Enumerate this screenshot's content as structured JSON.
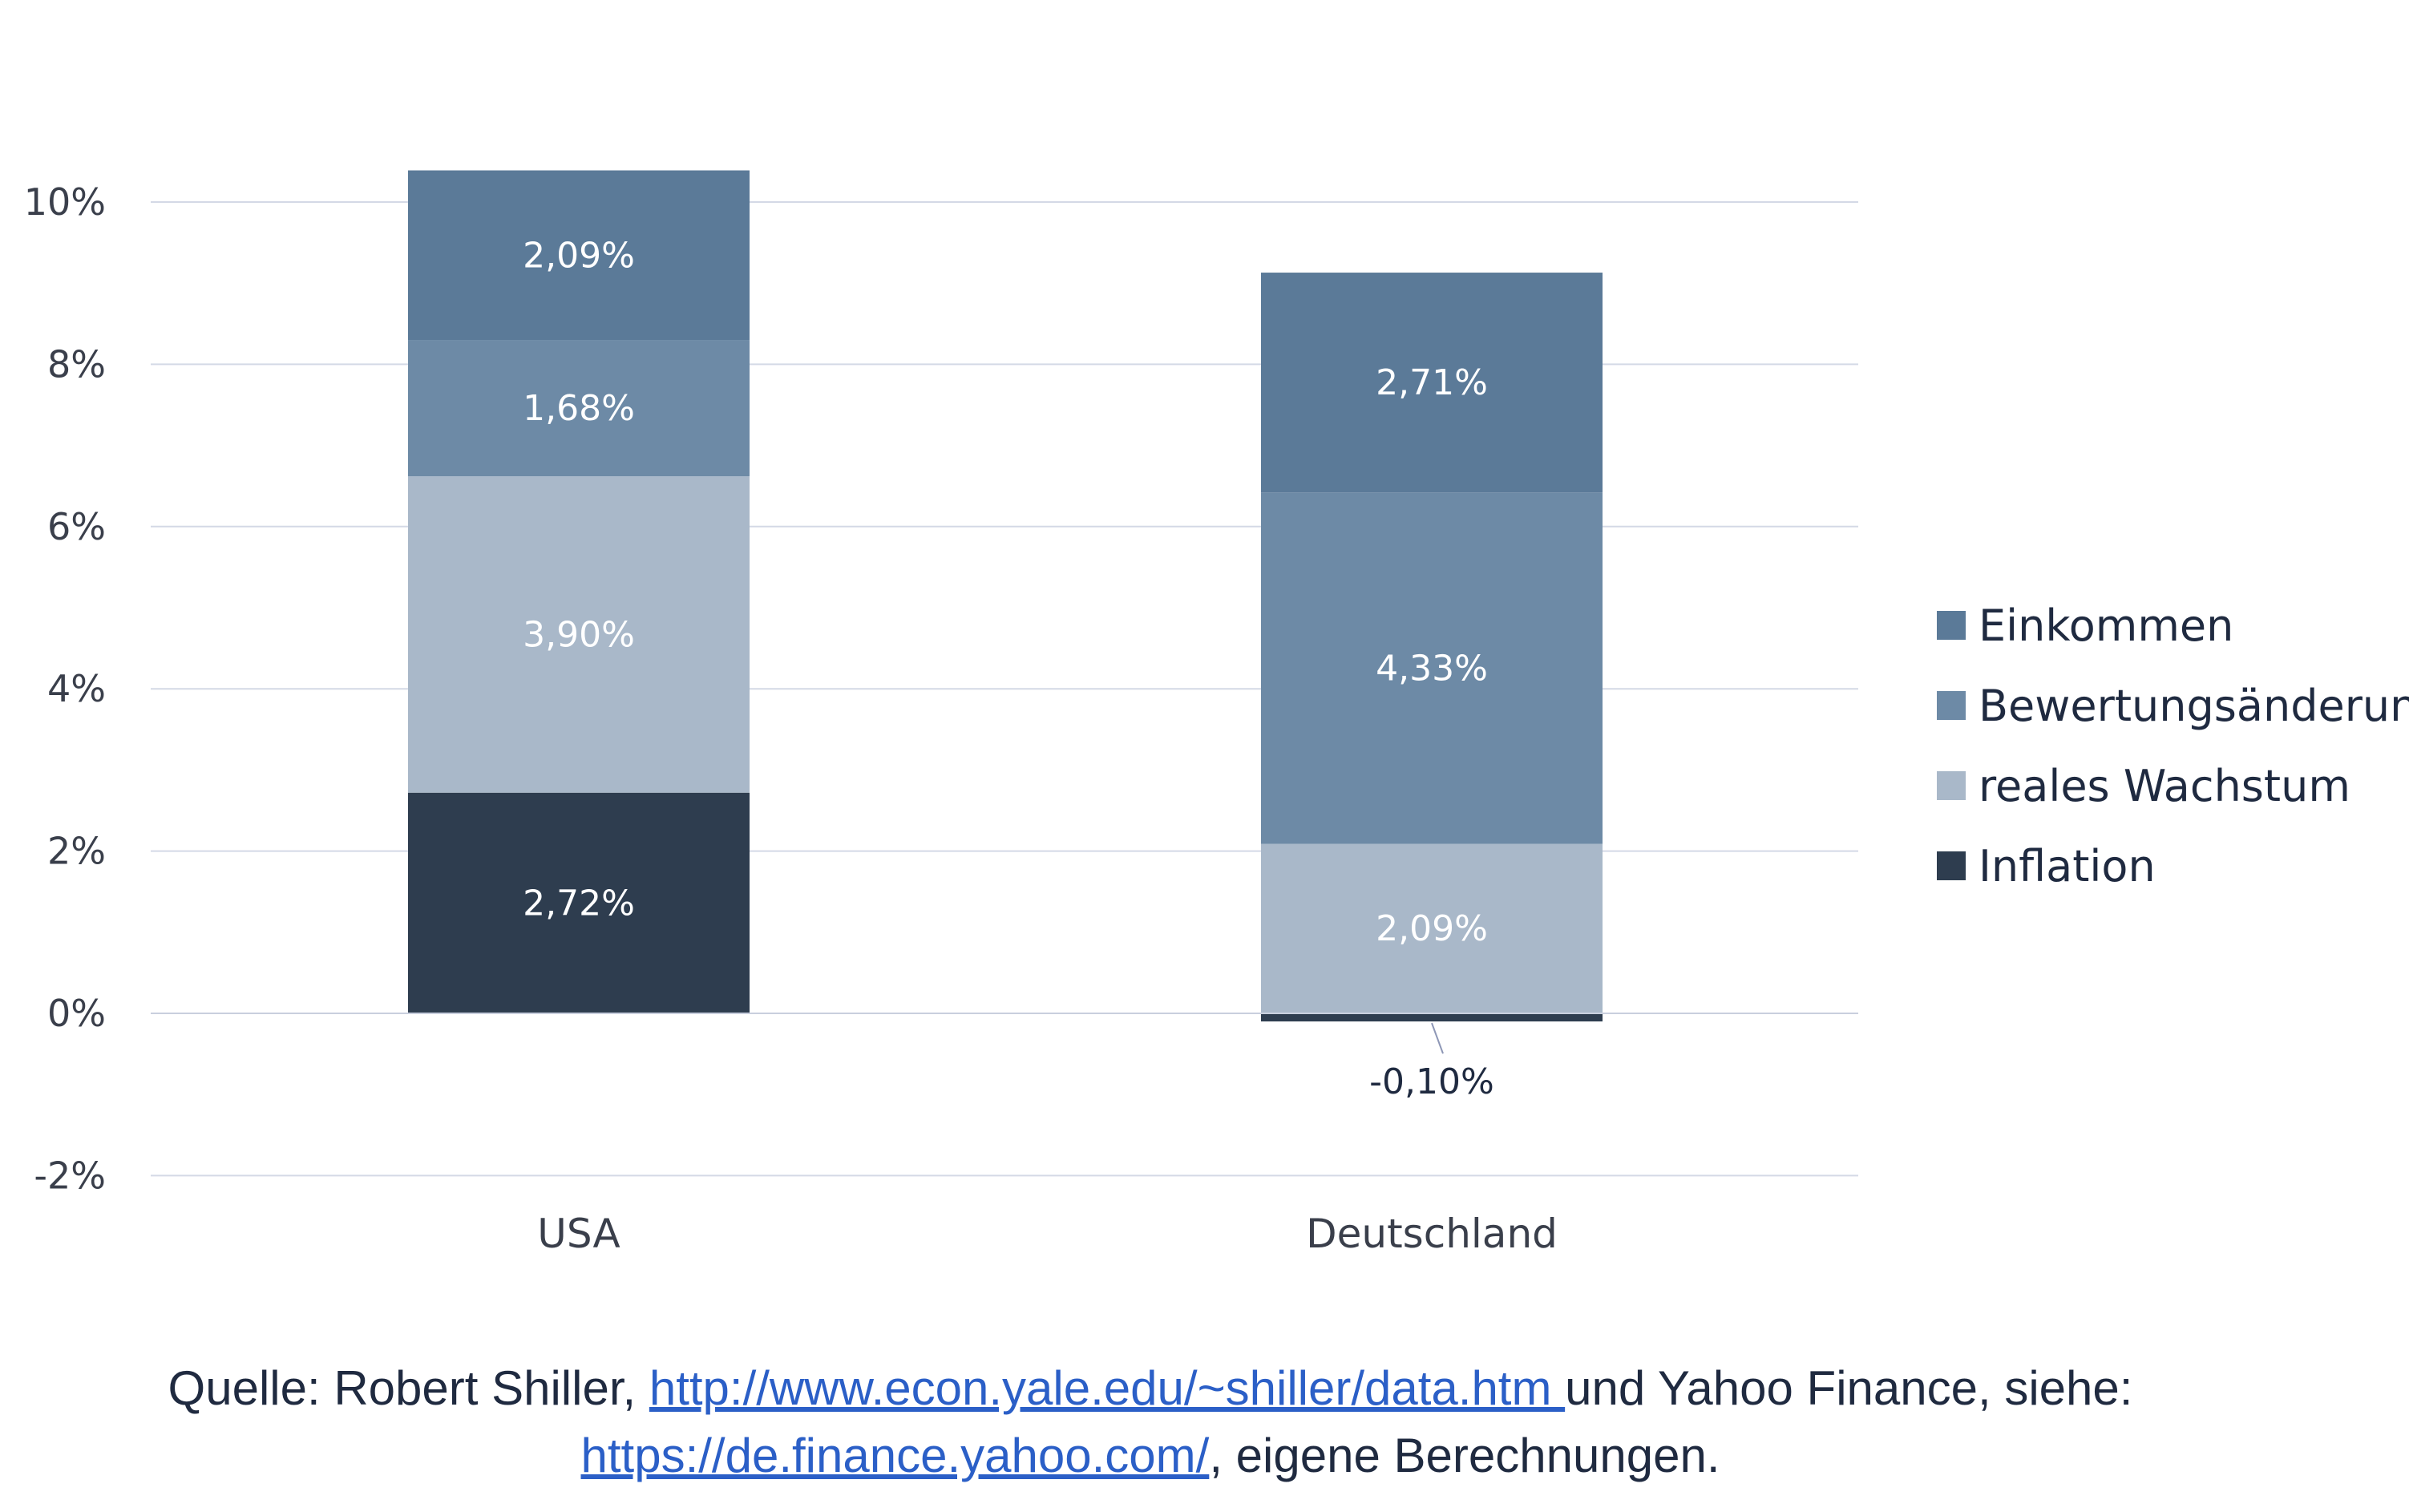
{
  "chart_data": {
    "type": "bar",
    "stacked": true,
    "categories": [
      "USA",
      "Deutschland"
    ],
    "series": [
      {
        "name": "Inflation",
        "values": [
          2.72,
          -0.1
        ],
        "labels": [
          "2,72%",
          "-0,10%"
        ],
        "color": "#2e3d4f",
        "label_color": "#ffffff"
      },
      {
        "name": "reales Wachstum",
        "values": [
          3.9,
          2.09
        ],
        "labels": [
          "3,90%",
          "2,09%"
        ],
        "color": "#a9b8c9",
        "label_color": "#ffffff"
      },
      {
        "name": "Bewertungsänderung",
        "values": [
          1.68,
          4.33
        ],
        "labels": [
          "1,68%",
          "4,33%"
        ],
        "color": "#6d8aa6",
        "label_color": "#ffffff"
      },
      {
        "name": "Einkommen",
        "values": [
          2.09,
          2.71
        ],
        "labels": [
          "2,09%",
          "2,71%"
        ],
        "color": "#5b7a98",
        "label_color": "#ffffff"
      }
    ],
    "ylim": [
      -2,
      10
    ],
    "yticks": [
      10,
      8,
      6,
      4,
      2,
      0,
      -2
    ],
    "ytick_labels": [
      "10%",
      "8%",
      "6%",
      "4%",
      "2%",
      "0%",
      "-2%"
    ],
    "grid": true,
    "legend_position": "right",
    "legend_order": [
      "Einkommen",
      "Bewertungsänderung",
      "reales Wachstum",
      "Inflation"
    ]
  },
  "source": {
    "prefix": "Quelle: Robert Shiller, ",
    "link1": "http://www.econ.yale.edu/~shiller/data.htm ",
    "middle": "und Yahoo Finance, siehe:",
    "link2": "https://de.finance.yahoo.com/",
    "suffix": ", eigene Berechnungen."
  }
}
